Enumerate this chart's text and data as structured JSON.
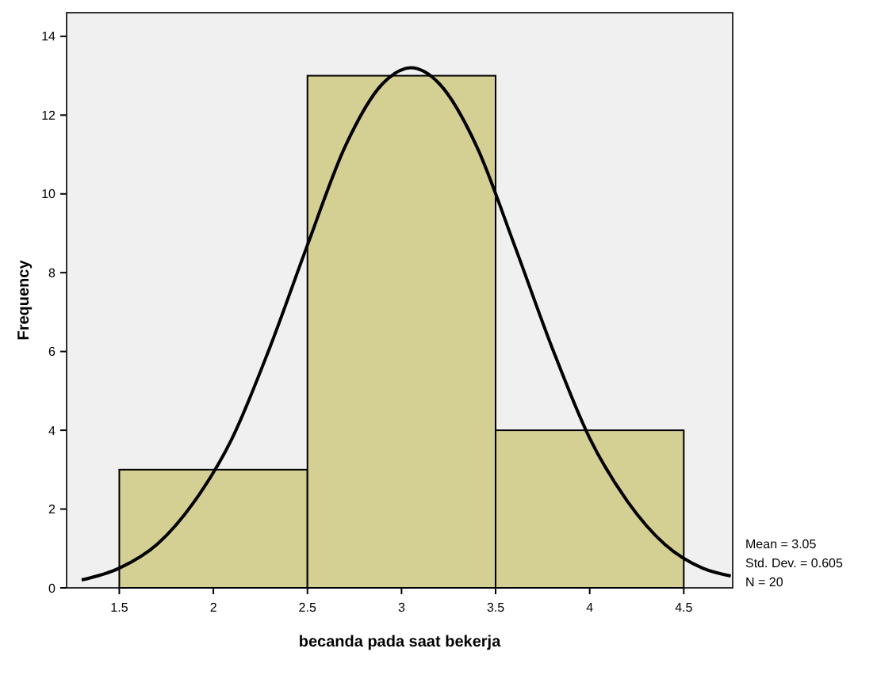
{
  "chart_data": {
    "type": "histogram",
    "xlabel": "becanda pada saat bekerja",
    "ylabel": "Frequency",
    "bins": [
      1.5,
      2.5,
      3.5,
      4.5
    ],
    "values": [
      3,
      13,
      4
    ],
    "color": "#d4cf93",
    "series": [
      {
        "type": "line",
        "color": "#000000",
        "x": [
          1.3,
          1.5,
          1.7,
          1.9,
          2.1,
          2.3,
          2.5,
          2.7,
          2.9,
          3.05,
          3.2,
          3.4,
          3.6,
          3.8,
          4.0,
          4.2,
          4.4,
          4.6,
          4.75
        ],
        "values": [
          0.2,
          0.5,
          1.1,
          2.2,
          3.8,
          6.1,
          8.7,
          11.2,
          12.8,
          13.2,
          12.8,
          11.2,
          8.7,
          6.1,
          3.8,
          2.2,
          1.1,
          0.5,
          0.3
        ]
      }
    ],
    "xlim": [
      1.22,
      4.76
    ],
    "xticks": [
      1.5,
      2,
      2.5,
      3,
      3.5,
      4,
      4.5
    ],
    "ylim": [
      0,
      14.6
    ],
    "yticks": [
      0,
      2,
      4,
      6,
      8,
      10,
      12,
      14
    ],
    "annotations": [
      "Mean = 3.05",
      "Std. Dev. = 0.605",
      "N = 20"
    ]
  }
}
